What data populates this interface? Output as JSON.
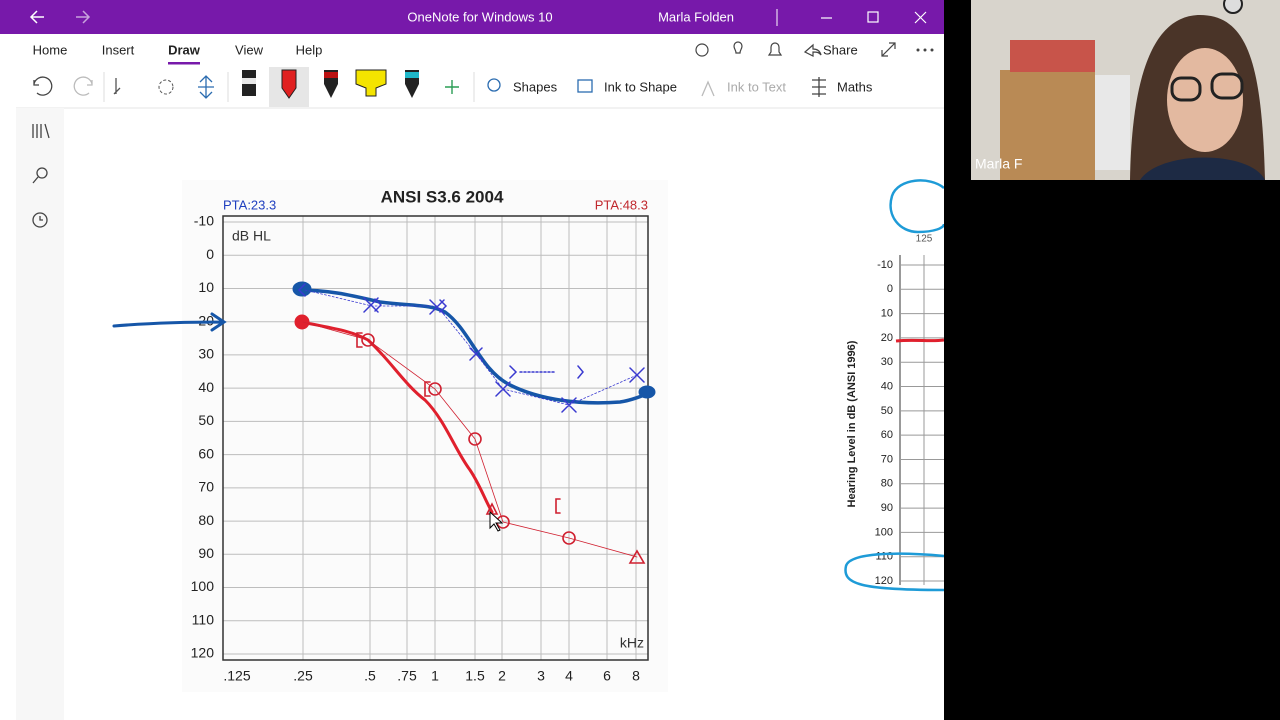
{
  "window": {
    "title": "OneNote for Windows 10",
    "user": "Marla Folden"
  },
  "ribbon_tabs": [
    "Home",
    "Insert",
    "Draw",
    "View",
    "Help"
  ],
  "active_tab": 2,
  "share": "Share",
  "ribbon_tools": [
    "Shapes",
    "Ink to Shape",
    "Ink to Text",
    "Maths"
  ],
  "audiogram": {
    "title": "ANSI S3.6 2004",
    "pta_left": "PTA:23.3",
    "pta_right": "PTA:48.3",
    "y_unit": "dB HL",
    "x_unit": "kHz",
    "y_labels": [
      -10,
      0,
      10,
      20,
      30,
      40,
      50,
      60,
      70,
      80,
      90,
      100,
      110,
      120
    ],
    "x_labels": [
      ".125",
      ".25",
      ".5",
      ".75",
      "1",
      "1.5",
      "2",
      "3",
      "4",
      "6",
      "8"
    ]
  },
  "second_audiogram": {
    "axis_title": "Hearing Level in dB (ANSI 1996)",
    "top_label": "125",
    "y_labels": [
      -10,
      0,
      10,
      20,
      30,
      40,
      50,
      60,
      70,
      80,
      90,
      100,
      110,
      120
    ]
  },
  "video": {
    "participant": "Marla F"
  }
}
